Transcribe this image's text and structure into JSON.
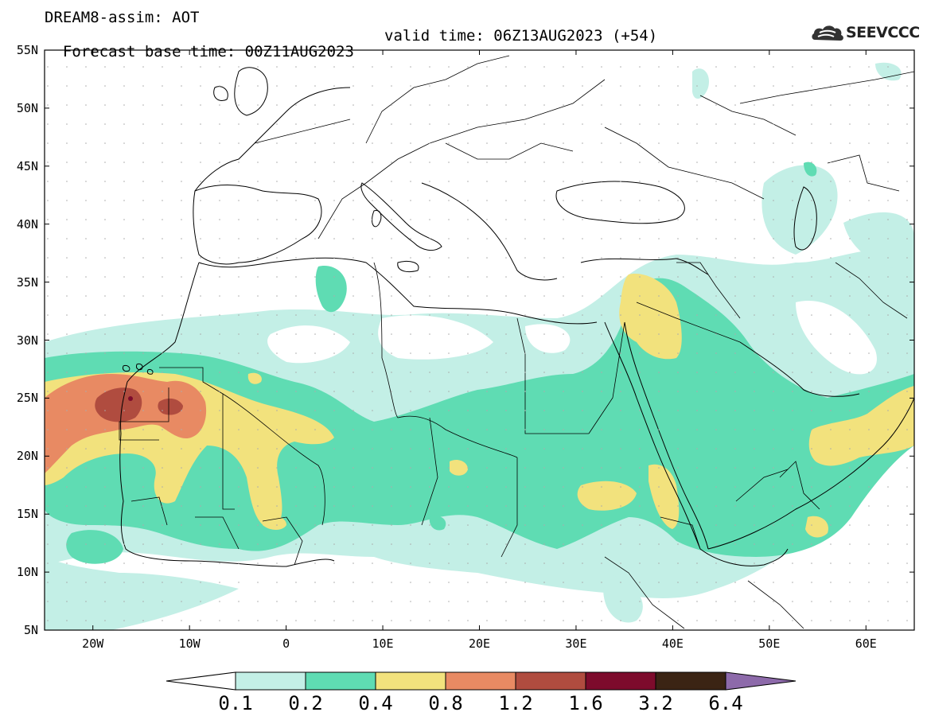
{
  "title": {
    "line1": "DREAM8-assim: AOT",
    "line2": "Forecast base time: 00Z11AUG2023",
    "valid": "valid time: 06Z13AUG2023 (+54)"
  },
  "logo": {
    "text": "SEEVCCC",
    "icon": "cloud-icon"
  },
  "map": {
    "lat_range": [
      5,
      55
    ],
    "lon_range": [
      -25,
      65
    ],
    "lat_ticks": [
      "55N",
      "50N",
      "45N",
      "40N",
      "35N",
      "30N",
      "25N",
      "20N",
      "15N",
      "10N",
      "5N"
    ],
    "lon_ticks": [
      "20W",
      "10W",
      "0",
      "10E",
      "20E",
      "30E",
      "40E",
      "50E",
      "60E"
    ]
  },
  "colorbar": {
    "labels": [
      "0.1",
      "0.2",
      "0.4",
      "0.8",
      "1.2",
      "1.6",
      "3.2",
      "6.4"
    ],
    "colors": [
      "#ffffff",
      "#c3efe6",
      "#5fdcb3",
      "#f2e27d",
      "#e88a63",
      "#b04c3f",
      "#7d0b2c",
      "#3b2414",
      "#8d6aaa"
    ]
  }
}
